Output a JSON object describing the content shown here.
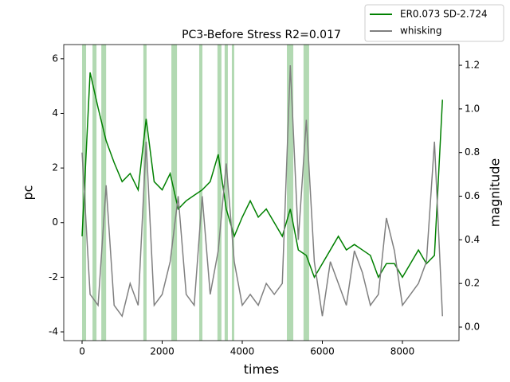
{
  "chart_data": {
    "type": "line",
    "title": "PC3-Before Stress R2=0.017",
    "x_label": "times",
    "y_label": "pc",
    "y2_label": "magnitude",
    "x": [
      0,
      200,
      400,
      600,
      800,
      1000,
      1200,
      1400,
      1600,
      1800,
      2000,
      2200,
      2400,
      2600,
      2800,
      3000,
      3200,
      3400,
      3600,
      3800,
      4000,
      4200,
      4400,
      4600,
      4800,
      5000,
      5200,
      5400,
      5600,
      5800,
      6000,
      6200,
      6400,
      6600,
      6800,
      7000,
      7200,
      7400,
      7600,
      7800,
      8000,
      8200,
      8400,
      8600,
      8800,
      9000
    ],
    "series": [
      {
        "name": "ER0.073 SD-2.724",
        "color": "#008000",
        "axis": "y",
        "values": [
          -0.5,
          5.5,
          4.2,
          3,
          2.2,
          1.5,
          1.8,
          1.2,
          3.8,
          1.5,
          1.2,
          1.8,
          0.5,
          0.8,
          1.0,
          1.2,
          1.5,
          2.5,
          0.5,
          -0.5,
          0.2,
          0.8,
          0.2,
          0.5,
          0,
          -0.5,
          0.5,
          -1,
          -1.2,
          -2,
          -1.5,
          -1,
          -0.5,
          -1,
          -0.8,
          -1,
          -1.2,
          -2,
          -1.5,
          -1.5,
          -2,
          -1.5,
          -1,
          -1.5,
          -1.2,
          4.5
        ]
      },
      {
        "name": "whisking",
        "color": "#808080",
        "axis": "y2",
        "values": [
          0.8,
          0.15,
          0.1,
          0.65,
          0.1,
          0.05,
          0.2,
          0.1,
          0.85,
          0.1,
          0.15,
          0.3,
          0.6,
          0.15,
          0.1,
          0.6,
          0.15,
          0.35,
          0.75,
          0.3,
          0.1,
          0.15,
          0.1,
          0.2,
          0.15,
          0.2,
          1.2,
          0.4,
          0.95,
          0.3,
          0.05,
          0.3,
          0.2,
          0.1,
          0.35,
          0.25,
          0.1,
          0.15,
          0.5,
          0.35,
          0.1,
          0.15,
          0.2,
          0.3,
          0.85,
          0.05
        ]
      }
    ],
    "spans": [
      [
        0,
        100
      ],
      [
        260,
        360
      ],
      [
        480,
        600
      ],
      [
        1530,
        1610
      ],
      [
        2230,
        2370
      ],
      [
        2925,
        3005
      ],
      [
        3380,
        3480
      ],
      [
        3560,
        3640
      ],
      [
        3740,
        3800
      ],
      [
        5115,
        5275
      ],
      [
        5530,
        5670
      ]
    ],
    "span_color": "#7fbf7f",
    "xlim": [
      -458,
      9413
    ],
    "xticks": [
      0,
      2000,
      4000,
      6000,
      8000
    ],
    "ylim": [
      -4.32,
      6.52
    ],
    "yticks": [
      -4,
      -2,
      0,
      2,
      4,
      6
    ],
    "y2lim": [
      -0.062,
      1.295
    ],
    "y2ticks": [
      {
        "value": 0,
        "label": "0.0"
      },
      0.2,
      0.4,
      0.6,
      0.8,
      {
        "value": 1,
        "label": "1.0"
      },
      1.2
    ],
    "legend": "upper right",
    "grid": false
  }
}
